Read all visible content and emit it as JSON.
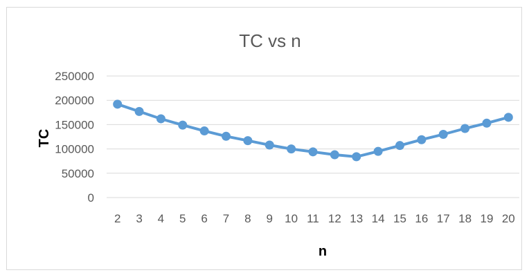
{
  "chart_data": {
    "type": "line",
    "title": "TC vs n",
    "xlabel": "n",
    "ylabel": "TC",
    "categories": [
      "2",
      "3",
      "4",
      "5",
      "6",
      "7",
      "8",
      "9",
      "10",
      "11",
      "12",
      "13",
      "14",
      "15",
      "16",
      "17",
      "18",
      "19",
      "20"
    ],
    "series": [
      {
        "values": [
          192000,
          177000,
          162000,
          149000,
          137000,
          126000,
          117000,
          108000,
          100000,
          94000,
          88000,
          84000,
          95000,
          107000,
          119000,
          130000,
          142000,
          153000,
          165000
        ]
      }
    ],
    "ylim": [
      0,
      250000
    ],
    "yticks": [
      0,
      50000,
      100000,
      150000,
      200000,
      250000
    ],
    "grid": true,
    "legend": "none",
    "colors": {
      "series": "#5b9bd5",
      "grid": "#d9d9d9",
      "text": "#595959"
    }
  }
}
